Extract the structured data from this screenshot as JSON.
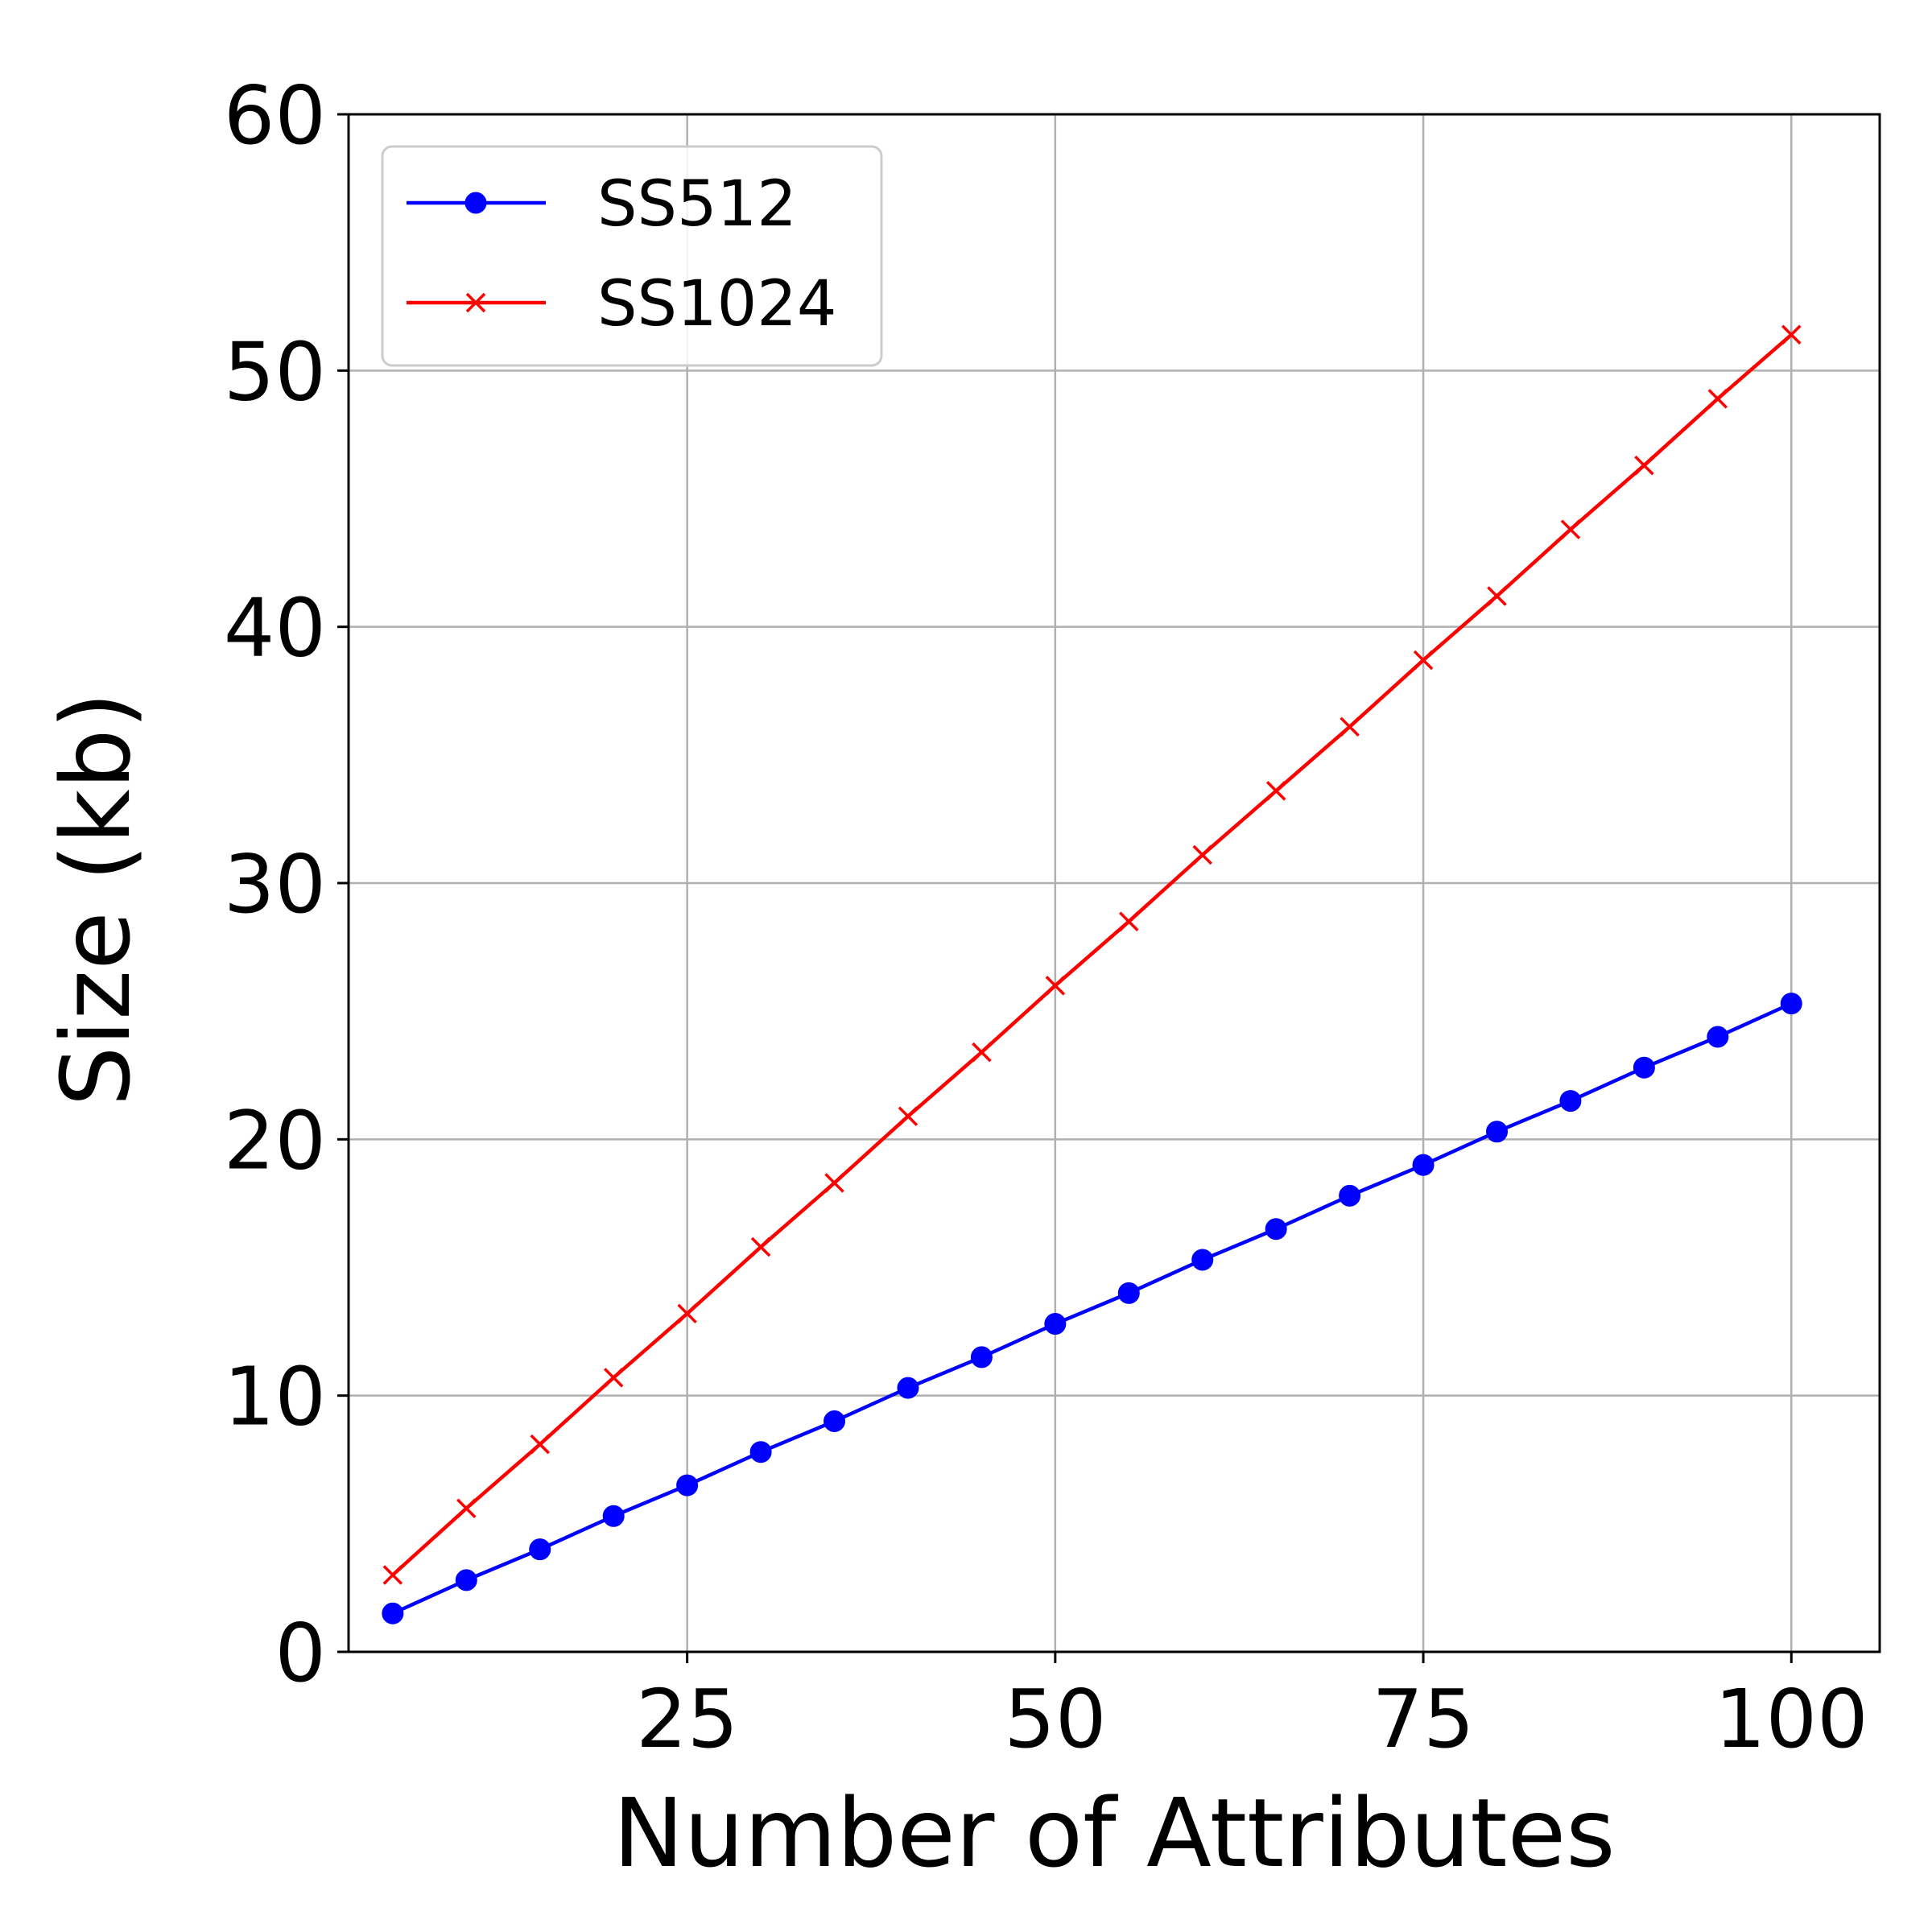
{
  "chart_data": {
    "type": "line",
    "title": "",
    "xlabel": "Number of Attributes",
    "ylabel": "Size (kb)",
    "xlim": [
      2,
      106
    ],
    "ylim": [
      0,
      60
    ],
    "xticks": [
      25,
      50,
      75,
      100
    ],
    "yticks": [
      0,
      10,
      20,
      30,
      40,
      50,
      60
    ],
    "grid": true,
    "legend_position": "top-left",
    "x": [
      5,
      10,
      15,
      20,
      25,
      30,
      35,
      40,
      45,
      50,
      55,
      60,
      65,
      70,
      75,
      80,
      85,
      90,
      95,
      100
    ],
    "series": [
      {
        "name": "SS512",
        "color": "#0000ff",
        "marker": "circle",
        "values": [
          1.5,
          2.8,
          4.0,
          5.3,
          6.5,
          7.8,
          9.0,
          10.3,
          11.5,
          12.8,
          14.0,
          15.3,
          16.5,
          17.8,
          19.0,
          20.3,
          21.5,
          22.8,
          24.0,
          25.3
        ]
      },
      {
        "name": "SS1024",
        "color": "#ff0000",
        "marker": "x",
        "values": [
          3.0,
          5.6,
          8.1,
          10.7,
          13.2,
          15.8,
          18.3,
          20.9,
          23.4,
          26.0,
          28.5,
          31.1,
          33.6,
          36.1,
          38.7,
          41.2,
          43.8,
          46.3,
          48.9,
          51.4
        ]
      }
    ]
  }
}
